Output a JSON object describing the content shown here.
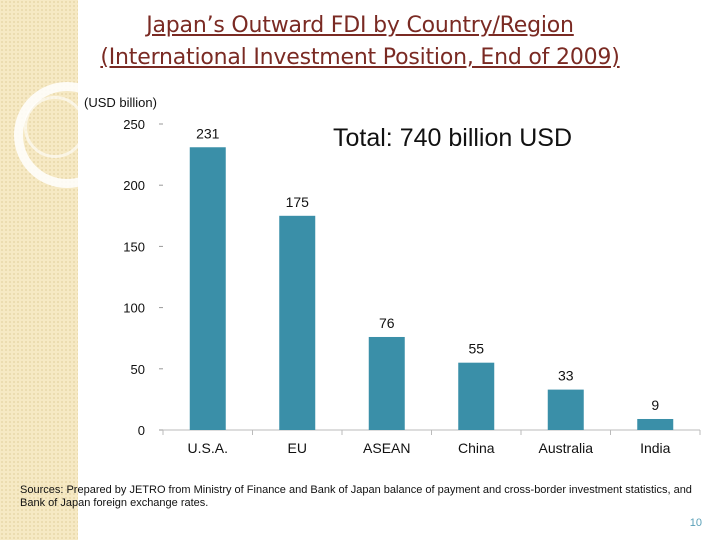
{
  "slide": {
    "title_line1": "Japan’s Outward FDI by Country/Region",
    "title_line2": "(International Investment Position, End of 2009)",
    "total_label": "Total: 740 billion USD",
    "source_note": "Sources: Prepared by JETRO from Ministry of Finance and Bank of Japan balance of payment and cross-border investment statistics, and Bank of Japan foreign exchange rates.",
    "page_number": "10"
  },
  "colors": {
    "bar": "#3a8fa8",
    "title": "#7a2a23",
    "background_strip": "#f6e9c4",
    "page_number": "#5aa0b8"
  },
  "chart_data": {
    "type": "bar",
    "unit_label": "(USD billion)",
    "categories": [
      "U.S.A.",
      "EU",
      "ASEAN",
      "China",
      "Australia",
      "India"
    ],
    "values": [
      231,
      175,
      76,
      55,
      33,
      9
    ],
    "value_labels": [
      "231",
      "175",
      "76",
      "55",
      "33",
      "9"
    ],
    "ylim": [
      0,
      250
    ],
    "yticks": [
      0,
      50,
      100,
      150,
      200,
      250
    ],
    "grid": false,
    "legend": "none"
  }
}
